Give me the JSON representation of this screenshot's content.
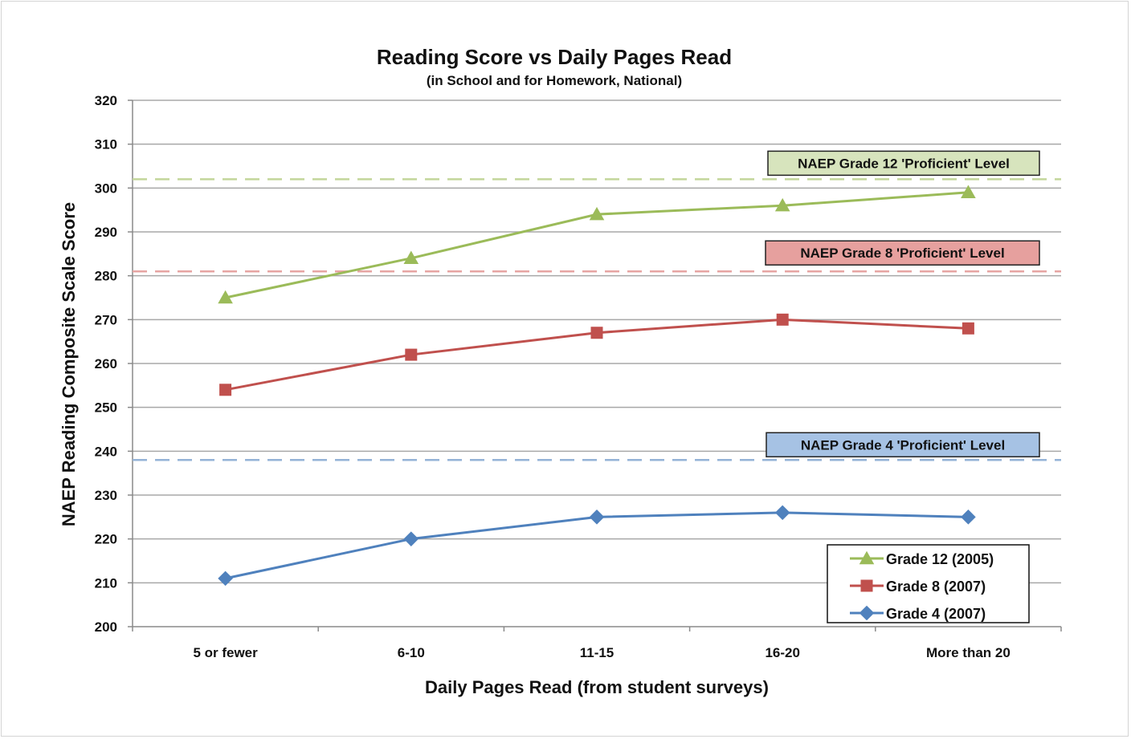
{
  "chart_data": {
    "type": "line",
    "title": "Reading Score vs Daily Pages Read",
    "subtitle": "(in School and for Homework, National)",
    "xlabel": "Daily Pages Read (from student surveys)",
    "ylabel": "NAEP Reading Composite Scale Score",
    "categories": [
      "5 or fewer",
      "6-10",
      "11-15",
      "16-20",
      "More than 20"
    ],
    "ylim": [
      200,
      320
    ],
    "yticks": [
      200,
      210,
      220,
      230,
      240,
      250,
      260,
      270,
      280,
      290,
      300,
      310,
      320
    ],
    "grid": true,
    "legend_position": "bottom-right",
    "series": [
      {
        "key": "g12",
        "name": "Grade 12 (2005)",
        "color": "#9bbb59",
        "marker": "triangle",
        "values": [
          275,
          284,
          294,
          296,
          299
        ]
      },
      {
        "key": "g8",
        "name": "Grade 8 (2007)",
        "color": "#c0504d",
        "marker": "square",
        "values": [
          254,
          262,
          267,
          270,
          268
        ]
      },
      {
        "key": "g4",
        "name": "Grade 4 (2007)",
        "color": "#4f81bd",
        "marker": "diamond",
        "values": [
          211,
          220,
          225,
          226,
          225
        ]
      }
    ],
    "reference_lines": [
      {
        "key": "ref12",
        "label": "NAEP Grade 12 'Proficient' Level",
        "value": 302,
        "line_color": "#c3d69b",
        "box_fill": "#d7e4bd"
      },
      {
        "key": "ref8",
        "label": "NAEP Grade 8 'Proficient' Level",
        "value": 281,
        "line_color": "#e6a5a3",
        "box_fill": "#e6a09e"
      },
      {
        "key": "ref4",
        "label": "NAEP Grade 4 'Proficient' Level",
        "value": 238,
        "line_color": "#95b3d7",
        "box_fill": "#a6c2e4"
      }
    ]
  }
}
